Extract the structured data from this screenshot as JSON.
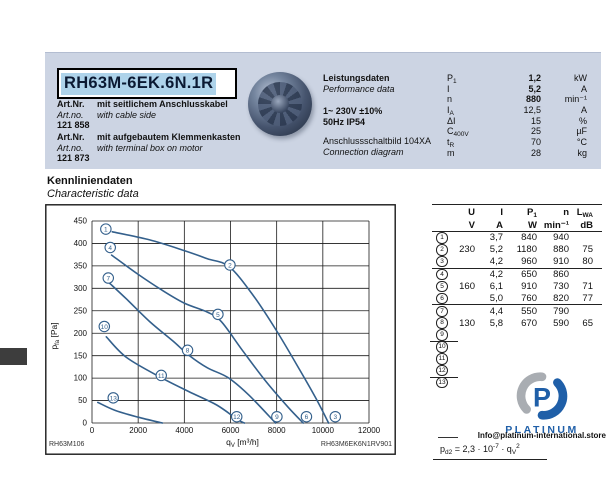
{
  "header": {
    "title": "RH63M-6EK.6N.1R",
    "art1": {
      "label_de": "Art.Nr.",
      "desc_de": "mit seitlichem Anschlusskabel",
      "label_en": "Art.no.",
      "desc_en": "with cable side",
      "number": "121 858"
    },
    "art2": {
      "label_de": "Art.Nr.",
      "desc_de": "mit aufgebautem Klemmenkasten",
      "label_en": "Art.no.",
      "desc_en": "with terminal box on motor",
      "number": "121 873"
    },
    "performance": {
      "title_de": "Leistungsdaten",
      "title_en": "Performance data",
      "voltage": "1~ 230V ±10%",
      "freq_ip": "50Hz   IP54",
      "diagram_de": "Anschlussschaltbild 104XA",
      "diagram_en": "Connection diagram",
      "rows": [
        {
          "sym": "P",
          "sub": "1",
          "val": "1,2",
          "unit": "kW",
          "bold": true
        },
        {
          "sym": "I",
          "sub": "",
          "val": "5,2",
          "unit": "A",
          "bold": true
        },
        {
          "sym": "n",
          "sub": "",
          "val": "880",
          "unit": "min⁻¹",
          "bold": true
        },
        {
          "sym": "I",
          "sub": "A",
          "val": "12,5",
          "unit": "A",
          "bold": false
        },
        {
          "sym": "ΔI",
          "sub": "",
          "val": "15",
          "unit": "%",
          "bold": false
        },
        {
          "sym": "C",
          "sub": "400V",
          "val": "25",
          "unit": "µF",
          "bold": false
        },
        {
          "sym": "t",
          "sub": "R",
          "val": "70",
          "unit": "°C",
          "bold": false
        },
        {
          "sym": "m",
          "sub": "",
          "val": "28",
          "unit": "kg",
          "bold": false
        }
      ]
    }
  },
  "section": {
    "title_de": "Kennliniendaten",
    "title_en": "Characteristic data"
  },
  "chart": {
    "code_left": "RH63M106",
    "code_right": "RH63M6EK6N1RV901",
    "xlabel_main": "q",
    "xlabel_sub": "V",
    "xlabel_rest": " [m³/h]",
    "ylabel_main": "p",
    "ylabel_sub": "fa",
    "ylabel_rest": " [Pa]"
  },
  "chart_data": {
    "type": "line",
    "xlabel": "qV [m³/h]",
    "ylabel": "pfa [Pa]",
    "xlim": [
      0,
      12000
    ],
    "ylim": [
      0,
      450
    ],
    "xticks": [
      0,
      2000,
      4000,
      6000,
      8000,
      10000,
      12000
    ],
    "yticks": [
      0,
      50,
      100,
      150,
      200,
      250,
      300,
      350,
      400,
      450
    ],
    "grid": true,
    "series": [
      {
        "name": "curve-1-2-3",
        "points": [
          [
            880,
            426
          ],
          [
            2500,
            408
          ],
          [
            4000,
            384
          ],
          [
            5000,
            366
          ],
          [
            5950,
            348
          ],
          [
            7000,
            283
          ],
          [
            8000,
            205
          ],
          [
            9000,
            118
          ],
          [
            9700,
            55
          ],
          [
            10250,
            0
          ]
        ]
      },
      {
        "name": "curve-4-5-6",
        "points": [
          [
            850,
            374
          ],
          [
            2000,
            331
          ],
          [
            3000,
            297
          ],
          [
            4000,
            267
          ],
          [
            5000,
            247
          ],
          [
            5600,
            226
          ],
          [
            6500,
            163
          ],
          [
            7500,
            95
          ],
          [
            8500,
            35
          ],
          [
            9150,
            0
          ]
        ]
      },
      {
        "name": "curve-7-8-9",
        "points": [
          [
            750,
            312
          ],
          [
            1500,
            276
          ],
          [
            2500,
            226
          ],
          [
            3500,
            183
          ],
          [
            4200,
            151
          ],
          [
            5000,
            123
          ],
          [
            5900,
            101
          ],
          [
            6800,
            62
          ],
          [
            7950,
            0
          ]
        ]
      },
      {
        "name": "curve-10-11-12",
        "points": [
          [
            620,
            192
          ],
          [
            1500,
            146
          ],
          [
            3000,
            101
          ],
          [
            4200,
            70
          ],
          [
            5400,
            40
          ],
          [
            6300,
            8
          ],
          [
            6600,
            0
          ]
        ]
      },
      {
        "name": "curve-13",
        "points": [
          [
            250,
            46
          ],
          [
            1000,
            28
          ],
          [
            2000,
            13
          ],
          [
            3050,
            0
          ]
        ]
      }
    ],
    "labels": [
      {
        "n": "1",
        "x": 600,
        "y": 432
      },
      {
        "n": "2",
        "x": 5975,
        "y": 352
      },
      {
        "n": "3",
        "x": 10540,
        "y": 14
      },
      {
        "n": "4",
        "x": 790,
        "y": 391
      },
      {
        "n": "5",
        "x": 5455,
        "y": 242
      },
      {
        "n": "6",
        "x": 9290,
        "y": 14
      },
      {
        "n": "7",
        "x": 705,
        "y": 323
      },
      {
        "n": "8",
        "x": 4140,
        "y": 162
      },
      {
        "n": "9",
        "x": 8010,
        "y": 14
      },
      {
        "n": "10",
        "x": 533,
        "y": 215
      },
      {
        "n": "11",
        "x": 3000,
        "y": 106
      },
      {
        "n": "12",
        "x": 6270,
        "y": 14
      },
      {
        "n": "13",
        "x": 920,
        "y": 56
      }
    ]
  },
  "table": {
    "headers": [
      {
        "t": "U",
        "sub": ""
      },
      {
        "t": "I",
        "sub": ""
      },
      {
        "t": "P",
        "sub": "1"
      },
      {
        "t": "n",
        "sub": ""
      },
      {
        "t": "L",
        "sub": "WA"
      }
    ],
    "units": [
      "V",
      "A",
      "W",
      "min⁻¹",
      "dB"
    ],
    "rows": [
      {
        "n": "1",
        "u": "",
        "i": "3,7",
        "p": "840",
        "rpm": "940",
        "lwa": "",
        "rule": ""
      },
      {
        "n": "2",
        "u": "230",
        "i": "5,2",
        "p": "1180",
        "rpm": "880",
        "lwa": "75",
        "rule": ""
      },
      {
        "n": "3",
        "u": "",
        "i": "4,2",
        "p": "960",
        "rpm": "910",
        "lwa": "80",
        "rule": "full"
      },
      {
        "n": "4",
        "u": "",
        "i": "4,2",
        "p": "650",
        "rpm": "860",
        "lwa": "",
        "rule": ""
      },
      {
        "n": "5",
        "u": "160",
        "i": "6,1",
        "p": "910",
        "rpm": "730",
        "lwa": "71",
        "rule": ""
      },
      {
        "n": "6",
        "u": "",
        "i": "5,0",
        "p": "760",
        "rpm": "820",
        "lwa": "77",
        "rule": "full"
      },
      {
        "n": "7",
        "u": "",
        "i": "4,4",
        "p": "550",
        "rpm": "790",
        "lwa": "",
        "rule": ""
      },
      {
        "n": "8",
        "u": "130",
        "i": "5,8",
        "p": "670",
        "rpm": "590",
        "lwa": "65",
        "rule": ""
      },
      {
        "n": "9",
        "u": "",
        "i": "",
        "p": "",
        "rpm": "",
        "lwa": "",
        "rule": "short"
      },
      {
        "n": "10",
        "u": "",
        "i": "",
        "p": "",
        "rpm": "",
        "lwa": "",
        "rule": ""
      },
      {
        "n": "11",
        "u": "",
        "i": "",
        "p": "",
        "rpm": "",
        "lwa": "",
        "rule": ""
      },
      {
        "n": "12",
        "u": "",
        "i": "",
        "p": "",
        "rpm": "",
        "lwa": "",
        "rule": "short"
      },
      {
        "n": "13",
        "u": "",
        "i": "",
        "p": "",
        "rpm": "",
        "lwa": "",
        "rule": ""
      }
    ]
  },
  "logo": {
    "brand": "PLATINUM",
    "email": "Info@platinum-international.store"
  },
  "formula": {
    "base": "p",
    "sub": "d2",
    "mid": " = 2,3 · 10",
    "exp": "-7",
    "mid2": " · q",
    "sub2": "V",
    "exp2": "2"
  },
  "colors": {
    "panel_bg": "#ccd4e3",
    "title_highlight": "#aed3ea",
    "curve": "#34608c",
    "logo_blue": "#1f5fa8",
    "logo_grey": "#a9adb2",
    "tab_black": "#3d3d3d"
  }
}
